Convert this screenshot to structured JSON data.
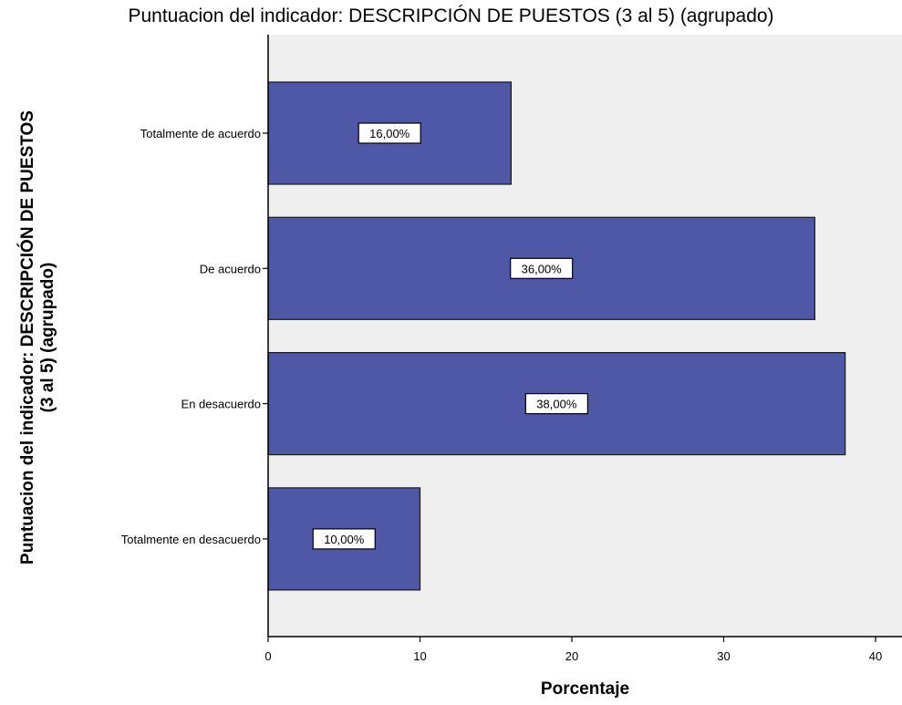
{
  "chart_data": {
    "type": "bar",
    "orientation": "horizontal",
    "title": "Puntuacion del indicador: DESCRIPCIÓN DE PUESTOS (3 al 5) (agrupado)",
    "ylabel_lines": [
      "Puntuacion del indicador: DESCRIPCIÓN DE PUESTOS",
      "(3 al 5) (agrupado)"
    ],
    "xlabel": "Porcentaje",
    "categories": [
      "Totalmente de acuerdo",
      "De acuerdo",
      "En desacuerdo",
      "Totalmente en desacuerdo"
    ],
    "values": [
      16,
      36,
      38,
      10
    ],
    "data_labels": [
      "16,00%",
      "36,00%",
      "38,00%",
      "10,00%"
    ],
    "xlim": [
      0,
      42
    ],
    "xticks": [
      0,
      10,
      20,
      30,
      40
    ],
    "xtick_labels": [
      "0",
      "10",
      "20",
      "30",
      "40"
    ],
    "grid": false,
    "legend": false,
    "colors": {
      "bar_fill": "#4f58a7",
      "bar_stroke": "#1a1a1a",
      "plot_background": "#efefef",
      "label_box_fill": "#ffffff"
    }
  }
}
